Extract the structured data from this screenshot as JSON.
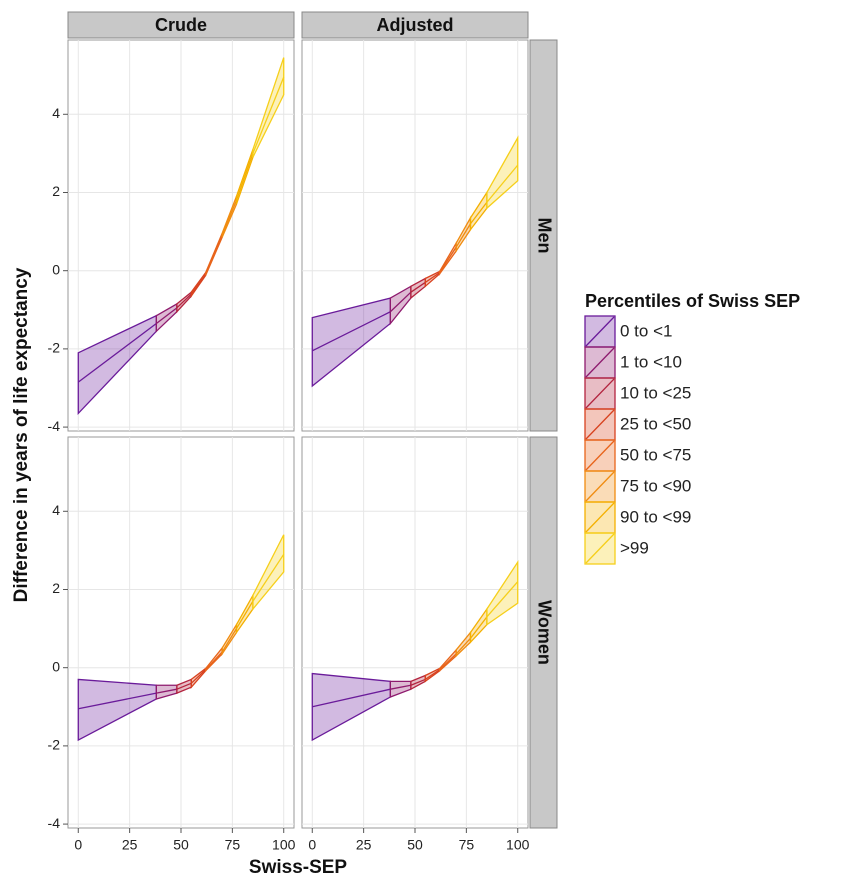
{
  "chart_data": {
    "type": "ribbon",
    "columns": [
      "Crude",
      "Adjusted"
    ],
    "rows": [
      "Men",
      "Women"
    ],
    "xlabel": "Swiss-SEP",
    "ylabel": "Difference in years of life expectancy",
    "legend_title": "Percentiles of Swiss SEP",
    "xlim": [
      -5,
      105
    ],
    "xticks": [
      0,
      25,
      50,
      75,
      100
    ],
    "ylim": [
      -4.1,
      5.9
    ],
    "yticks": [
      -4,
      -2,
      0,
      2,
      4
    ],
    "grid": true,
    "legend": "right",
    "series": [
      {
        "name": "0 to <1",
        "color": "#6a1b9a"
      },
      {
        "name": "1 to <10",
        "color": "#8e1a6e"
      },
      {
        "name": "10 to <25",
        "color": "#b3243f"
      },
      {
        "name": "25 to <50",
        "color": "#d8421f"
      },
      {
        "name": "50 to <75",
        "color": "#e8641a"
      },
      {
        "name": "75 to <90",
        "color": "#f08c10"
      },
      {
        "name": "90 to <99",
        "color": "#f4b000"
      },
      {
        "name": ">99",
        "color": "#f6cf1a"
      }
    ],
    "x": [
      0,
      38,
      48,
      55,
      62,
      70,
      77,
      85,
      100
    ],
    "panels": [
      {
        "values": [
          -2.85,
          -1.35,
          -0.95,
          -0.6,
          -0.1,
          0.9,
          1.8,
          3.0,
          4.95
        ],
        "lower": [
          -3.65,
          -1.55,
          -1.05,
          -0.65,
          -0.12,
          0.85,
          1.7,
          2.9,
          4.5
        ],
        "upper": [
          -2.1,
          -1.15,
          -0.85,
          -0.55,
          -0.05,
          0.95,
          1.9,
          3.1,
          5.45
        ]
      },
      {
        "values": [
          -2.05,
          -1.05,
          -0.55,
          -0.3,
          -0.05,
          0.6,
          1.2,
          1.75,
          2.7
        ],
        "lower": [
          -2.95,
          -1.35,
          -0.7,
          -0.4,
          -0.08,
          0.5,
          1.05,
          1.6,
          2.3
        ],
        "upper": [
          -1.2,
          -0.7,
          -0.4,
          -0.2,
          -0.02,
          0.7,
          1.35,
          2.0,
          3.4
        ]
      },
      {
        "values": [
          -1.05,
          -0.65,
          -0.55,
          -0.4,
          -0.05,
          0.4,
          1.0,
          1.7,
          2.9
        ],
        "lower": [
          -1.85,
          -0.8,
          -0.65,
          -0.5,
          -0.08,
          0.35,
          0.9,
          1.5,
          2.45
        ],
        "upper": [
          -0.3,
          -0.45,
          -0.45,
          -0.3,
          -0.02,
          0.5,
          1.1,
          1.85,
          3.4
        ]
      },
      {
        "values": [
          -1.0,
          -0.55,
          -0.45,
          -0.3,
          -0.05,
          0.35,
          0.75,
          1.3,
          2.2
        ],
        "lower": [
          -1.85,
          -0.75,
          -0.55,
          -0.35,
          -0.08,
          0.3,
          0.65,
          1.1,
          1.65
        ],
        "upper": [
          -0.15,
          -0.35,
          -0.35,
          -0.2,
          -0.02,
          0.45,
          0.9,
          1.5,
          2.7
        ]
      }
    ]
  }
}
